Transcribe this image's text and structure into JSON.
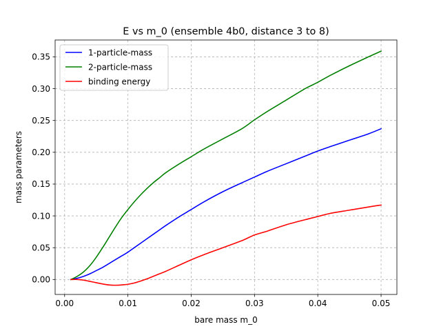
{
  "chart_data": {
    "type": "line",
    "title": "E vs m_0 (ensemble 4b0, distance 3 to 8)",
    "xlabel": "bare mass m_0",
    "ylabel": "mass parameters",
    "xlim": [
      -0.0015,
      0.0525
    ],
    "ylim": [
      -0.0235,
      0.3765
    ],
    "xticks": [
      0.0,
      0.01,
      0.02,
      0.03,
      0.04,
      0.05
    ],
    "xtick_labels": [
      "0.00",
      "0.01",
      "0.02",
      "0.03",
      "0.04",
      "0.05"
    ],
    "yticks": [
      0.0,
      0.05,
      0.1,
      0.15,
      0.2,
      0.25,
      0.3,
      0.35
    ],
    "ytick_labels": [
      "0.00",
      "0.05",
      "0.10",
      "0.15",
      "0.20",
      "0.25",
      "0.30",
      "0.35"
    ],
    "grid": true,
    "legend_position": "top-left",
    "x": [
      0.001,
      0.002,
      0.003,
      0.004,
      0.005,
      0.006,
      0.007,
      0.008,
      0.009,
      0.01,
      0.011,
      0.012,
      0.013,
      0.014,
      0.015,
      0.016,
      0.018,
      0.02,
      0.022,
      0.025,
      0.028,
      0.03,
      0.032,
      0.035,
      0.038,
      0.04,
      0.042,
      0.045,
      0.048,
      0.05
    ],
    "series": [
      {
        "name": "1-particle-mass",
        "color": "#0000ff",
        "values": [
          0.0,
          0.002,
          0.005,
          0.009,
          0.014,
          0.019,
          0.025,
          0.031,
          0.037,
          0.043,
          0.05,
          0.057,
          0.064,
          0.071,
          0.078,
          0.085,
          0.098,
          0.11,
          0.122,
          0.138,
          0.152,
          0.161,
          0.17,
          0.182,
          0.194,
          0.202,
          0.209,
          0.219,
          0.229,
          0.237
        ]
      },
      {
        "name": "2-particle-mass",
        "color": "#008000",
        "values": [
          0.0,
          0.005,
          0.012,
          0.022,
          0.035,
          0.05,
          0.066,
          0.082,
          0.097,
          0.11,
          0.122,
          0.133,
          0.143,
          0.152,
          0.16,
          0.168,
          0.181,
          0.193,
          0.205,
          0.221,
          0.237,
          0.251,
          0.264,
          0.282,
          0.3,
          0.31,
          0.321,
          0.336,
          0.35,
          0.359
        ]
      },
      {
        "name": "binding energy",
        "color": "#ff0000",
        "values": [
          0.0,
          0.0,
          -0.001,
          -0.003,
          -0.005,
          -0.007,
          -0.0085,
          -0.009,
          -0.0085,
          -0.0075,
          -0.0055,
          -0.0025,
          0.001,
          0.005,
          0.009,
          0.013,
          0.022,
          0.031,
          0.039,
          0.05,
          0.061,
          0.07,
          0.076,
          0.086,
          0.094,
          0.099,
          0.104,
          0.109,
          0.114,
          0.117
        ]
      }
    ]
  }
}
